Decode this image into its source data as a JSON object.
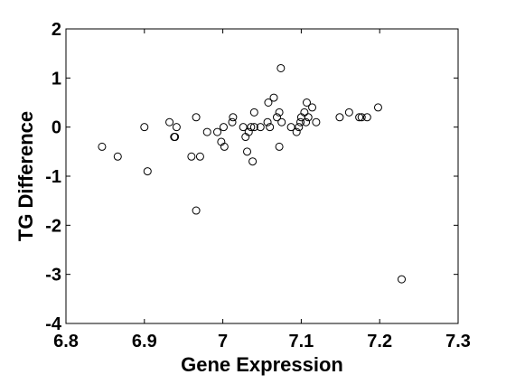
{
  "chart_data": {
    "type": "scatter",
    "title": "",
    "xlabel": "Gene Expression",
    "ylabel": "TG Difference",
    "xlim": [
      6.8,
      7.3
    ],
    "ylim": [
      -4,
      2
    ],
    "xticks": [
      "6.8",
      "6.9",
      "7",
      "7.1",
      "7.2",
      "7.3"
    ],
    "yticks": [
      "-4",
      "-3",
      "-2",
      "-1",
      "0",
      "1",
      "2"
    ],
    "grid": false,
    "marker": "open-circle",
    "colors": {
      "marker": "#000000",
      "axes": "#000000",
      "background": "#ffffff"
    },
    "points": [
      {
        "x": 6.846,
        "y": -0.4
      },
      {
        "x": 6.866,
        "y": -0.6
      },
      {
        "x": 6.9,
        "y": 0.0
      },
      {
        "x": 6.904,
        "y": -0.9
      },
      {
        "x": 6.932,
        "y": 0.1
      },
      {
        "x": 6.938,
        "y": -0.2
      },
      {
        "x": 6.939,
        "y": -0.2
      },
      {
        "x": 6.941,
        "y": 0.0
      },
      {
        "x": 6.96,
        "y": -0.6
      },
      {
        "x": 6.966,
        "y": 0.2
      },
      {
        "x": 6.966,
        "y": -1.7
      },
      {
        "x": 6.971,
        "y": -0.6
      },
      {
        "x": 6.98,
        "y": -0.1
      },
      {
        "x": 6.993,
        "y": -0.1
      },
      {
        "x": 6.998,
        "y": -0.3
      },
      {
        "x": 7.001,
        "y": 0.0
      },
      {
        "x": 7.002,
        "y": -0.4
      },
      {
        "x": 7.012,
        "y": 0.1
      },
      {
        "x": 7.013,
        "y": 0.2
      },
      {
        "x": 7.026,
        "y": 0.0
      },
      {
        "x": 7.029,
        "y": -0.2
      },
      {
        "x": 7.031,
        "y": -0.5
      },
      {
        "x": 7.033,
        "y": -0.1
      },
      {
        "x": 7.036,
        "y": 0.0
      },
      {
        "x": 7.038,
        "y": -0.7
      },
      {
        "x": 7.04,
        "y": 0.0
      },
      {
        "x": 7.04,
        "y": 0.3
      },
      {
        "x": 7.048,
        "y": 0.0
      },
      {
        "x": 7.057,
        "y": 0.1
      },
      {
        "x": 7.058,
        "y": 0.5
      },
      {
        "x": 7.06,
        "y": 0.0
      },
      {
        "x": 7.065,
        "y": 0.6
      },
      {
        "x": 7.069,
        "y": 0.2
      },
      {
        "x": 7.072,
        "y": 0.3
      },
      {
        "x": 7.072,
        "y": -0.4
      },
      {
        "x": 7.074,
        "y": 1.2
      },
      {
        "x": 7.075,
        "y": 0.1
      },
      {
        "x": 7.087,
        "y": 0.0
      },
      {
        "x": 7.094,
        "y": -0.1
      },
      {
        "x": 7.097,
        "y": 0.0
      },
      {
        "x": 7.099,
        "y": 0.1
      },
      {
        "x": 7.1,
        "y": 0.2
      },
      {
        "x": 7.104,
        "y": 0.3
      },
      {
        "x": 7.106,
        "y": 0.1
      },
      {
        "x": 7.107,
        "y": 0.5
      },
      {
        "x": 7.109,
        "y": 0.2
      },
      {
        "x": 7.114,
        "y": 0.4
      },
      {
        "x": 7.119,
        "y": 0.1
      },
      {
        "x": 7.149,
        "y": 0.2
      },
      {
        "x": 7.161,
        "y": 0.3
      },
      {
        "x": 7.174,
        "y": 0.2
      },
      {
        "x": 7.177,
        "y": 0.2
      },
      {
        "x": 7.184,
        "y": 0.2
      },
      {
        "x": 7.198,
        "y": 0.4
      },
      {
        "x": 7.228,
        "y": -3.1
      }
    ]
  }
}
